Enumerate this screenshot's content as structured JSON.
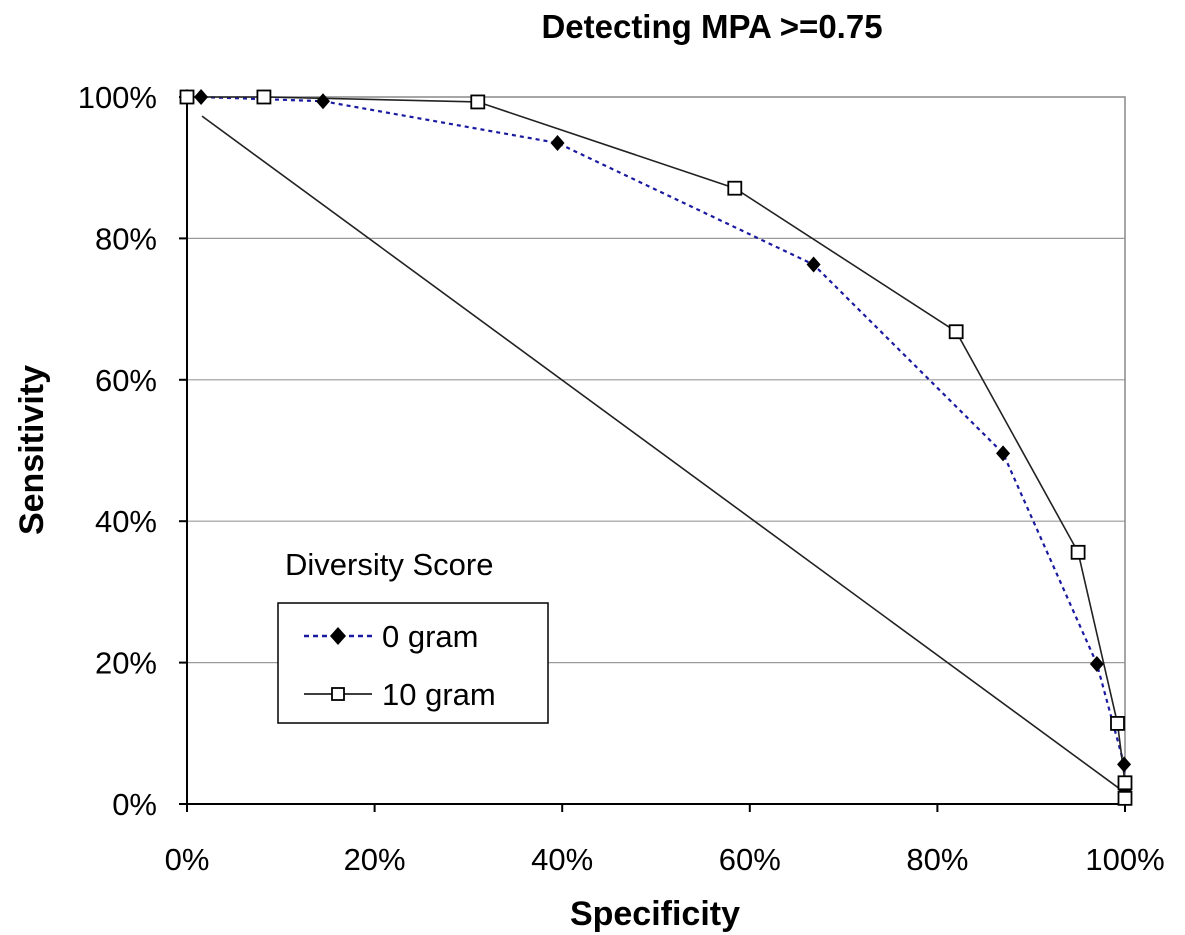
{
  "chart_data": {
    "type": "line",
    "title": "Detecting MPA >=0.75",
    "xlabel": "Specificity",
    "ylabel": "Sensitivity",
    "xlim": [
      0,
      100
    ],
    "ylim": [
      0,
      100
    ],
    "x_ticks": [
      "0%",
      "20%",
      "40%",
      "60%",
      "80%",
      "100%"
    ],
    "y_ticks": [
      "0%",
      "20%",
      "40%",
      "60%",
      "80%",
      "100%"
    ],
    "grid": "horizontal",
    "legend_title": "Diversity Score",
    "legend_placement": "lower-left",
    "series": [
      {
        "name": "0 gram",
        "style": "dotted",
        "marker": "filled-diamond",
        "color": "#1a1aa0",
        "points": [
          [
            0,
            100
          ],
          [
            1.5,
            100
          ],
          [
            14.5,
            99.4
          ],
          [
            39.5,
            93.5
          ],
          [
            66.8,
            76.3
          ],
          [
            87,
            49.6
          ],
          [
            97,
            19.8
          ],
          [
            99.9,
            5.6
          ],
          [
            100,
            2
          ]
        ]
      },
      {
        "name": "10 gram",
        "style": "solid",
        "marker": "open-square",
        "color": "#222222",
        "points": [
          [
            0,
            100
          ],
          [
            8.2,
            100
          ],
          [
            31,
            99.3
          ],
          [
            58.4,
            87.1
          ],
          [
            82,
            66.8
          ],
          [
            95,
            35.6
          ],
          [
            99.2,
            11.4
          ],
          [
            100,
            3
          ],
          [
            100,
            0.8
          ]
        ]
      },
      {
        "name": "",
        "style": "solid",
        "marker": "none",
        "color": "#222222",
        "points": [
          [
            1.6,
            97.3
          ],
          [
            100,
            1.6
          ]
        ]
      }
    ]
  }
}
